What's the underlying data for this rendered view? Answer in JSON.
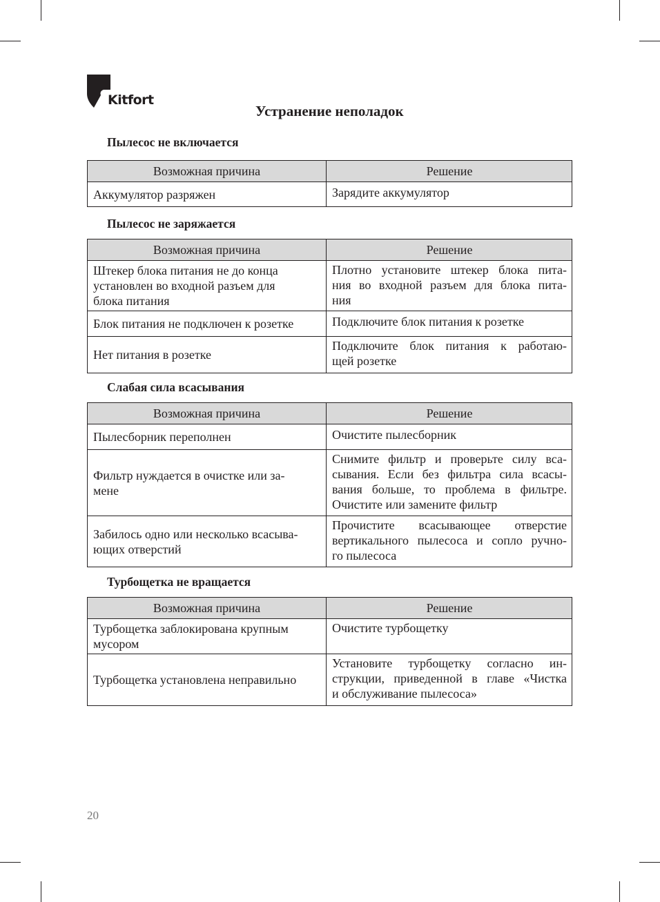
{
  "logo": {
    "text": "Kitfort"
  },
  "page_title": "Устранение неполадок",
  "header_labels": {
    "cause": "Возможная причина",
    "solution": "Решение"
  },
  "sections": [
    {
      "title": "Пылесос не включается",
      "rows": [
        {
          "cause": [
            "Аккумулятор разряжен"
          ],
          "solution": [
            "Зарядите аккумулятор"
          ]
        }
      ]
    },
    {
      "title": "Пылесос не заряжается",
      "rows": [
        {
          "cause": [
            "Штекер блока питания не до конца",
            "установлен во входной разъем для",
            "блока питания"
          ],
          "solution": [
            "Плотно установите штекер блока пита-",
            "ния во входной разъем для блока пита-",
            "ния"
          ]
        },
        {
          "cause": [
            "Блок питания не подключен к розетке"
          ],
          "solution": [
            "Подключите блок питания к розетке"
          ]
        },
        {
          "cause": [
            "Нет питания в розетке"
          ],
          "solution": [
            "Подключите блок питания к работаю-",
            "щей розетке"
          ]
        }
      ]
    },
    {
      "title": "Слабая сила всасывания",
      "rows": [
        {
          "cause": [
            "Пылесборник переполнен"
          ],
          "solution": [
            "Очистите пылесборник"
          ]
        },
        {
          "cause": [
            "Фильтр нуждается в очистке или за-",
            "мене"
          ],
          "solution": [
            "Снимите фильтр и проверьте силу вса-",
            "сывания. Если без фильтра сила всасы-",
            "вания больше, то проблема в фильтре.",
            "Очистите или замените фильтр"
          ]
        },
        {
          "cause": [
            "Забилось одно или несколько всасыва-",
            "ющих отверстий"
          ],
          "solution": [
            "Прочистите всасывающее отверстие",
            "вертикального пылесоса и сопло ручно-",
            "го пылесоса"
          ]
        }
      ]
    },
    {
      "title": "Турбощетка не вращается",
      "rows": [
        {
          "cause": [
            "Турбощетка заблокирована крупным",
            "мусором"
          ],
          "solution": [
            "Очистите турбощетку"
          ]
        },
        {
          "cause": [
            "Турбощетка установлена неправильно"
          ],
          "solution": [
            "Установите турбощетку согласно ин-",
            "струкции, приведенной в главе «Чистка",
            "и обслуживание пылесоса»"
          ]
        }
      ]
    }
  ],
  "page_number": "20"
}
